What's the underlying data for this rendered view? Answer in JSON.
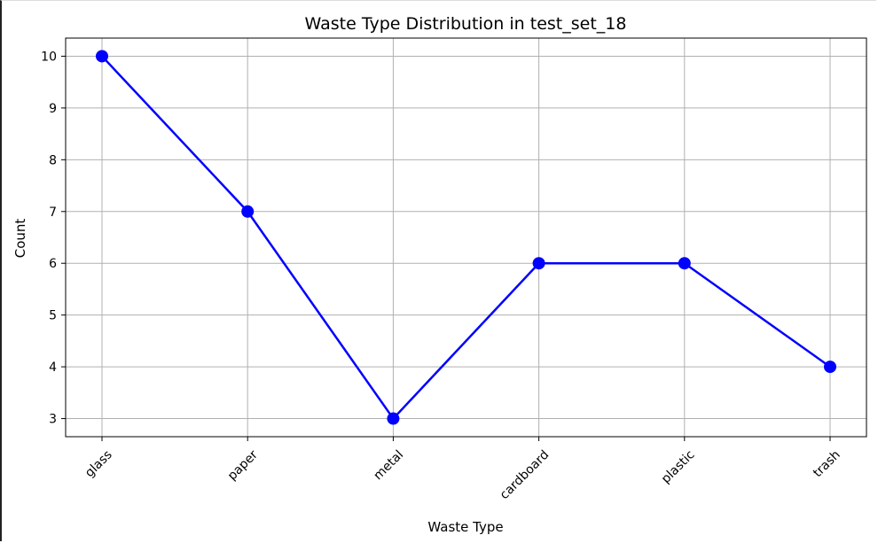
{
  "chart_data": {
    "type": "line",
    "title": "Waste Type Distribution in test_set_18",
    "xlabel": "Waste Type",
    "ylabel": "Count",
    "categories": [
      "glass",
      "paper",
      "metal",
      "cardboard",
      "plastic",
      "trash"
    ],
    "series": [
      {
        "values": [
          10,
          7,
          3,
          6,
          6,
          4
        ],
        "color": "#0000ff"
      }
    ],
    "ylim": [
      2.65,
      10.35
    ],
    "yticks": [
      3,
      4,
      5,
      6,
      7,
      8,
      9,
      10
    ],
    "grid": true,
    "x_tick_rotation": "45deg"
  }
}
